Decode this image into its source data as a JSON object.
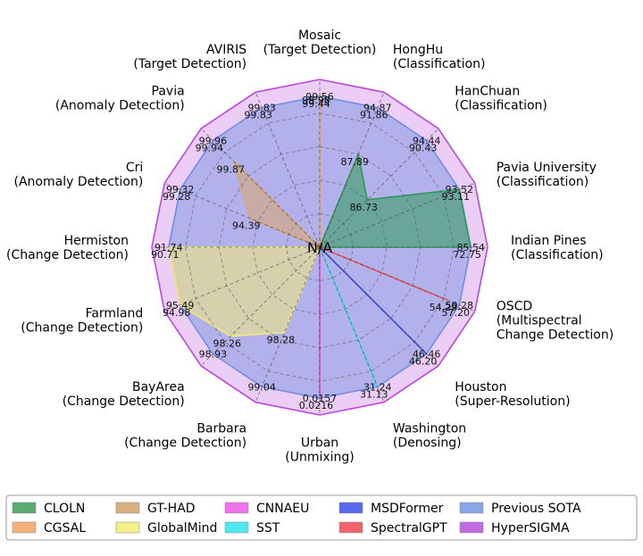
{
  "chart_data": {
    "type": "radar",
    "center_label": "N/A",
    "axes": [
      {
        "name": "Mosaic",
        "task": "(Target Detection)",
        "outer": "99.56"
      },
      {
        "name": "HongHu",
        "task": "(Classification)",
        "outer": "94.87"
      },
      {
        "name": "HanChuan",
        "task": "(Classification)",
        "outer": "94.44"
      },
      {
        "name": "Pavia University",
        "task": "(Classification)",
        "outer": "93.52"
      },
      {
        "name": "Indian Pines",
        "task": "(Classification)",
        "outer": "85.54"
      },
      {
        "name": "OSCD",
        "task": "(Multispectral\nChange Detection)",
        "outer": "59.28"
      },
      {
        "name": "Houston",
        "task": "(Super-Resolution)",
        "outer": "46.46"
      },
      {
        "name": "Washington",
        "task": "(Denosing)",
        "outer": "31.24"
      },
      {
        "name": "Urban",
        "task": "(Unmixing)",
        "outer": "0.0157"
      },
      {
        "name": "Barbara",
        "task": "(Change Detection)",
        "outer": "99.04"
      },
      {
        "name": "BayArea",
        "task": "(Change Detection)",
        "outer": "98.93"
      },
      {
        "name": "Farmland",
        "task": "(Change Detection)",
        "outer": "95.49"
      },
      {
        "name": "Hermiston",
        "task": "(Change Detection)",
        "outer": "91.74"
      },
      {
        "name": "Cri",
        "task": "(Anomaly Detection)",
        "outer": "99.32"
      },
      {
        "name": "Pavia",
        "task": "(Anomaly Detection)",
        "outer": "99.96"
      },
      {
        "name": "AVIRIS",
        "task": "(Target Detection)",
        "outer": "99.83"
      }
    ],
    "grid_levels": [
      0.2,
      0.4,
      0.6,
      0.8
    ],
    "series": [
      {
        "name": "CLOLN",
        "color": "#2e9a5a",
        "fill_opacity": 0.55,
        "r": [
          0,
          0.6,
          0.4,
          0.9,
          0.9,
          0,
          0,
          0,
          0,
          0,
          0,
          0,
          0,
          0,
          0,
          0
        ],
        "labels": [
          null,
          "87.89",
          "86.73",
          null,
          "72.75",
          null,
          null,
          null,
          null,
          null,
          null,
          null,
          null,
          null,
          null,
          null
        ]
      },
      {
        "name": "CGSAL",
        "color": "#f5a05a",
        "fill_opacity": 0.55,
        "r": [
          0.92,
          0,
          0,
          0,
          0,
          0,
          0,
          0,
          0,
          0,
          0,
          0,
          0,
          0,
          0,
          0
        ],
        "labels": [
          "98.98",
          null,
          null,
          null,
          null,
          null,
          null,
          null,
          null,
          null,
          null,
          null,
          null,
          null,
          null,
          null
        ]
      },
      {
        "name": "GT-HAD",
        "color": "#d8a56a",
        "fill_opacity": 0.55,
        "r": [
          0,
          0,
          0,
          0,
          0,
          0,
          0,
          0,
          0,
          0,
          0,
          0,
          0,
          0.45,
          0.72,
          0
        ],
        "labels": [
          null,
          null,
          null,
          null,
          null,
          null,
          null,
          null,
          null,
          null,
          null,
          null,
          null,
          "94.39",
          "99.87",
          null
        ]
      },
      {
        "name": "GlobalMind",
        "color": "#f2ea7a",
        "fill_opacity": 0.55,
        "r": [
          0,
          0,
          0,
          0,
          0,
          0,
          0,
          0,
          0,
          0.55,
          0.75,
          0.9,
          0.9,
          0,
          0,
          0
        ],
        "labels": [
          null,
          null,
          null,
          null,
          null,
          null,
          null,
          null,
          null,
          "98.28",
          "98.26",
          "94.98",
          "90.71",
          null,
          null,
          null
        ]
      },
      {
        "name": "CNNAEU",
        "color": "#e24ad8",
        "fill_opacity": 0.55,
        "r": [
          0,
          0,
          0,
          0,
          0,
          0,
          0,
          0,
          0.9,
          0,
          0,
          0,
          0,
          0,
          0,
          0
        ],
        "labels": [
          null,
          null,
          null,
          null,
          null,
          null,
          null,
          null,
          "0.0216",
          null,
          null,
          null,
          null,
          null,
          null,
          null
        ]
      },
      {
        "name": "SST",
        "color": "#2ee0ec",
        "fill_opacity": 0.55,
        "r": [
          0,
          0,
          0,
          0,
          0,
          0,
          0,
          0.9,
          0,
          0,
          0,
          0,
          0,
          0,
          0,
          0
        ],
        "labels": [
          null,
          null,
          null,
          null,
          null,
          null,
          null,
          "31.13",
          null,
          null,
          null,
          null,
          null,
          null,
          null,
          null
        ]
      },
      {
        "name": "MSDFormer",
        "color": "#3a4ae0",
        "fill_opacity": 0.55,
        "r": [
          0,
          0,
          0,
          0,
          0,
          0,
          0.9,
          0,
          0,
          0,
          0,
          0,
          0,
          0,
          0,
          0
        ],
        "labels": [
          null,
          null,
          null,
          null,
          null,
          null,
          "46.20",
          null,
          null,
          null,
          null,
          null,
          null,
          null,
          null,
          null
        ]
      },
      {
        "name": "SpectralGPT",
        "color": "#f0545c",
        "fill_opacity": 0.55,
        "r": [
          0,
          0,
          0,
          0,
          0,
          0.82,
          0,
          0,
          0,
          0,
          0,
          0,
          0,
          0,
          0,
          0
        ],
        "labels": [
          null,
          null,
          null,
          null,
          null,
          "54.29",
          null,
          null,
          null,
          null,
          null,
          null,
          null,
          null,
          null,
          null
        ]
      },
      {
        "name": "Previous SOTA",
        "color": "#6f90e0",
        "fill_opacity": 0.45,
        "r": [
          0.9,
          0.9,
          0.9,
          0.9,
          0.9,
          0.9,
          0.9,
          0.9,
          0.9,
          0.9,
          0.9,
          0.9,
          0.9,
          0.9,
          0.9,
          0.9
        ],
        "labels": [
          "99.44",
          "91.86",
          "90.43",
          "93.11",
          null,
          "57.20",
          null,
          null,
          null,
          null,
          null,
          null,
          null,
          "99.28",
          "99.94",
          "99.83"
        ]
      },
      {
        "name": "HyperSIGMA",
        "color": "#b84adc",
        "fill_opacity": 0.28,
        "r": [
          1,
          1,
          1,
          1,
          1,
          1,
          1,
          1,
          1,
          1,
          1,
          1,
          1,
          1,
          1,
          1
        ],
        "labels": [
          null,
          null,
          null,
          null,
          null,
          null,
          null,
          null,
          null,
          null,
          null,
          null,
          null,
          null,
          null,
          null
        ]
      }
    ],
    "legend": {
      "placement": "bottom",
      "entries": [
        {
          "label": "CLOLN",
          "color": "#5aaa72"
        },
        {
          "label": "CGSAL",
          "color": "#f5b07a"
        },
        {
          "label": "GT-HAD",
          "color": "#d9b07f"
        },
        {
          "label": "GlobalMind",
          "color": "#f3f087"
        },
        {
          "label": "CNNAEU",
          "color": "#ee72ea"
        },
        {
          "label": "SST",
          "color": "#4ee9f0"
        },
        {
          "label": "MSDFormer",
          "color": "#5a68ec"
        },
        {
          "label": "SpectralGPT",
          "color": "#f2646c"
        },
        {
          "label": "Previous SOTA",
          "color": "#8aa6e4"
        },
        {
          "label": "HyperSIGMA",
          "color": "#c06ce0"
        }
      ]
    }
  }
}
